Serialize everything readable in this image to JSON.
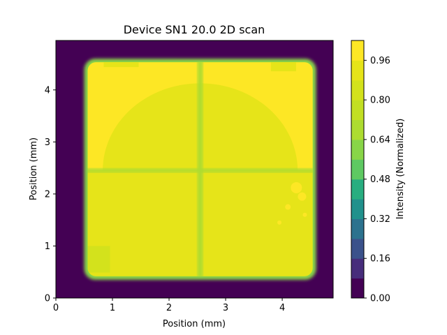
{
  "chart_data": {
    "type": "heatmap",
    "title": "Device SN1 20.0 2D scan",
    "xlabel": "Position (mm)",
    "ylabel": "Position (mm)",
    "xlim": [
      0,
      4.9
    ],
    "ylim": [
      0,
      4.95
    ],
    "x_ticks": [
      0,
      1,
      2,
      3,
      4
    ],
    "y_ticks": [
      0,
      1,
      2,
      3,
      4
    ],
    "grid": false,
    "colorbar": {
      "label": "Intensity (Normalized)",
      "range": [
        0.0,
        1.04
      ],
      "ticks": [
        "0.00",
        "0.16",
        "0.32",
        "0.48",
        "0.64",
        "0.80",
        "0.96"
      ],
      "colormap": "viridis",
      "levels": 13
    },
    "regions": {
      "background": {
        "value": 0.0,
        "description": "outside device"
      },
      "device_extent": {
        "x": [
          0.5,
          4.6
        ],
        "y": [
          0.35,
          4.6
        ]
      },
      "cross_line_x": 2.55,
      "cross_line_y": 2.45,
      "cross_line_value": 0.64,
      "edge_rim_value": 0.6,
      "lower_quadrants_value": 0.93,
      "upper_quadrants_value": 0.97,
      "upper_dome_value": 0.93,
      "bottom_left_patch_value": 0.86
    }
  }
}
